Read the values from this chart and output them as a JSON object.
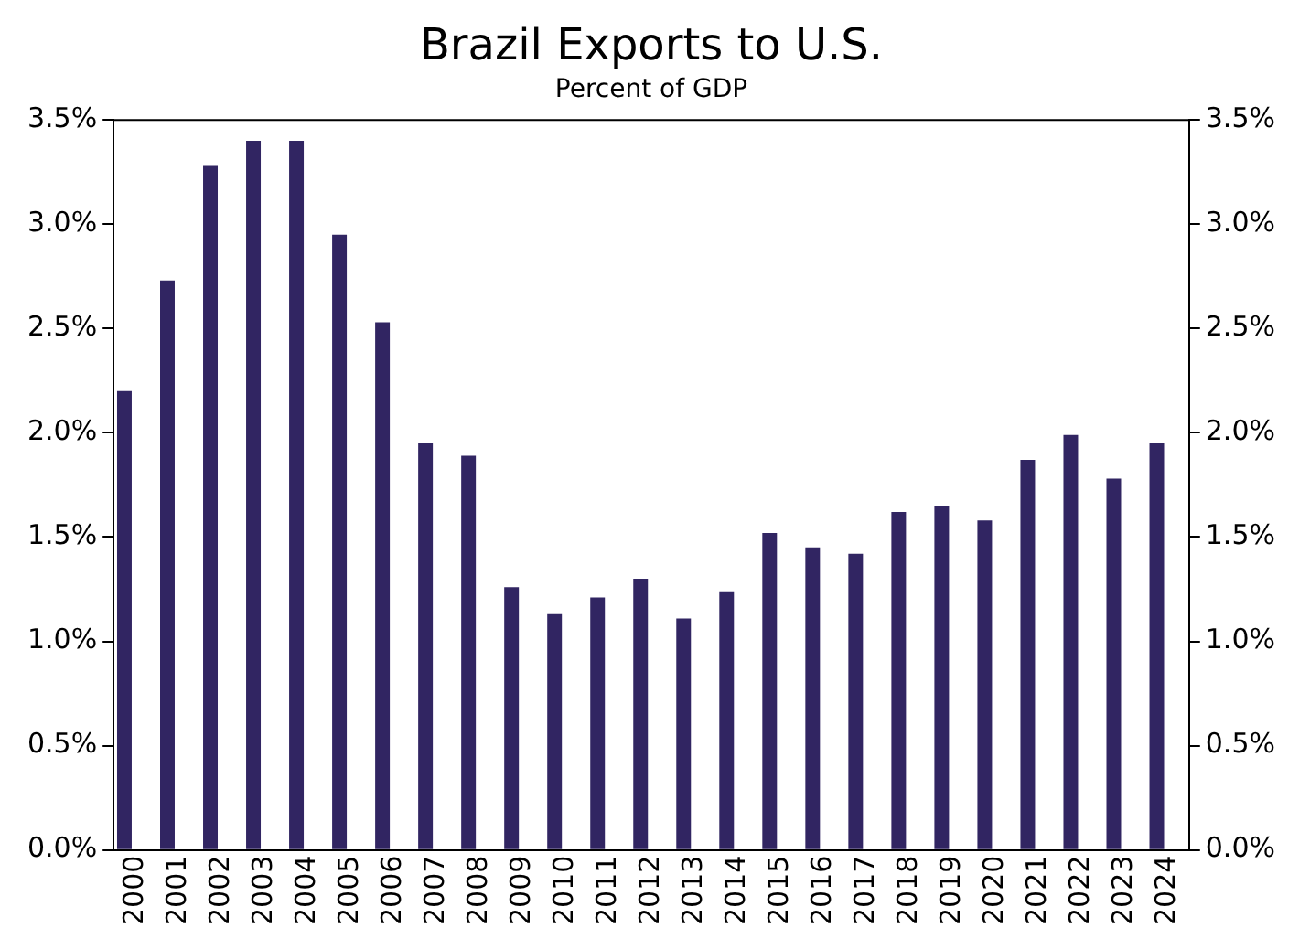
{
  "chart_data": {
    "type": "bar",
    "title": "Brazil Exports to U.S.",
    "subtitle": "Percent of GDP",
    "categories": [
      "2000",
      "2001",
      "2002",
      "2003",
      "2004",
      "2005",
      "2006",
      "2007",
      "2008",
      "2009",
      "2010",
      "2011",
      "2012",
      "2013",
      "2014",
      "2015",
      "2016",
      "2017",
      "2018",
      "2019",
      "2020",
      "2021",
      "2022",
      "2023",
      "2024"
    ],
    "values": [
      2.2,
      2.73,
      3.28,
      3.4,
      3.4,
      2.95,
      2.53,
      1.95,
      1.89,
      1.26,
      1.13,
      1.21,
      1.3,
      1.11,
      1.24,
      1.52,
      1.45,
      1.42,
      1.62,
      1.65,
      1.58,
      1.87,
      1.99,
      1.78,
      1.95
    ],
    "color": "#312562",
    "ylim": [
      0,
      3.5
    ],
    "yticks": [
      {
        "value": 0,
        "label": "0.0%"
      },
      {
        "value": 0.5,
        "label": "0.5%"
      },
      {
        "value": 1,
        "label": "1.0%"
      },
      {
        "value": 1.5,
        "label": "1.5%"
      },
      {
        "value": 2,
        "label": "2.0%"
      },
      {
        "value": 2.5,
        "label": "2.5%"
      },
      {
        "value": 3,
        "label": "3.0%"
      },
      {
        "value": 3.5,
        "label": "3.5%"
      }
    ],
    "y2lim": [
      0,
      3.5
    ],
    "y2ticks": [
      {
        "value": 0,
        "label": "0.0%"
      },
      {
        "value": 0.5,
        "label": "0.5%"
      },
      {
        "value": 1,
        "label": "1.0%"
      },
      {
        "value": 1.5,
        "label": "1.5%"
      },
      {
        "value": 2,
        "label": "2.0%"
      },
      {
        "value": 2.5,
        "label": "2.5%"
      },
      {
        "value": 3,
        "label": "3.0%"
      },
      {
        "value": 3.5,
        "label": "3.5%"
      }
    ],
    "grid": false,
    "legend": false
  }
}
